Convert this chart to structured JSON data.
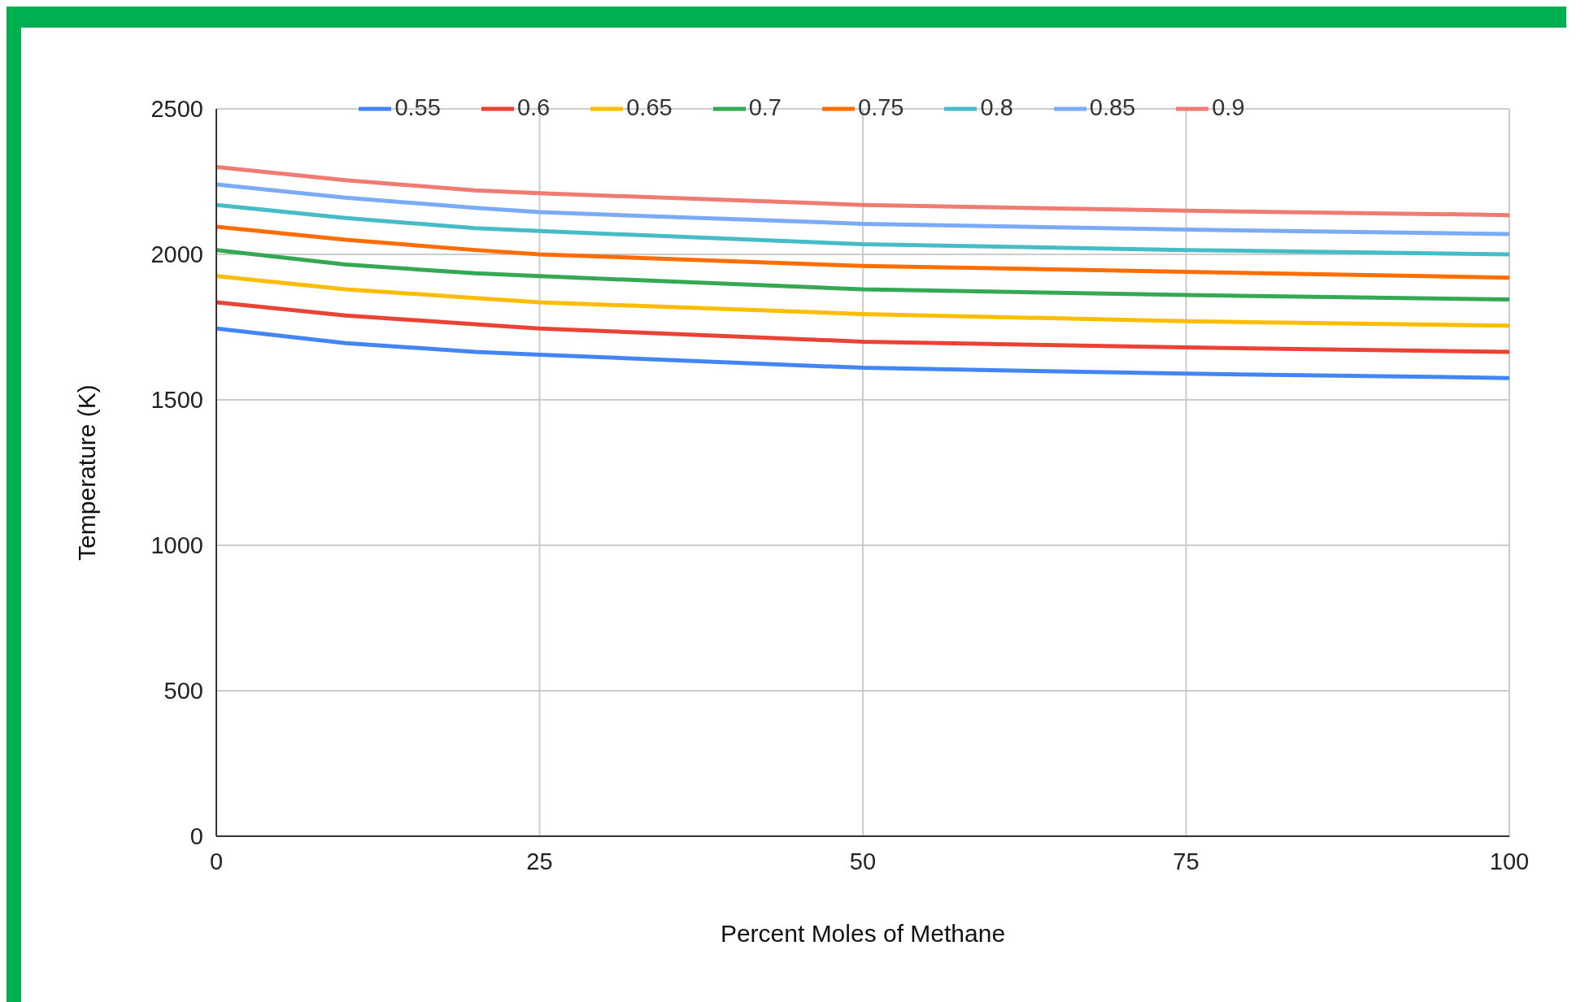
{
  "chart_data": {
    "type": "line",
    "xlabel": "Percent Moles of Methane",
    "ylabel": "Temperature (K)",
    "x": [
      0,
      10,
      20,
      25,
      50,
      75,
      100
    ],
    "series": [
      {
        "name": "0.55",
        "color": "#4285f4",
        "values": [
          1745,
          1695,
          1665,
          1655,
          1610,
          1590,
          1575
        ]
      },
      {
        "name": "0.6",
        "color": "#ea4335",
        "values": [
          1835,
          1790,
          1760,
          1745,
          1700,
          1680,
          1665
        ]
      },
      {
        "name": "0.65",
        "color": "#fbbc04",
        "values": [
          1925,
          1880,
          1850,
          1835,
          1795,
          1770,
          1755
        ]
      },
      {
        "name": "0.7",
        "color": "#34a853",
        "values": [
          2015,
          1965,
          1935,
          1925,
          1880,
          1860,
          1845
        ]
      },
      {
        "name": "0.75",
        "color": "#ff6d01",
        "values": [
          2095,
          2050,
          2015,
          2000,
          1960,
          1940,
          1920
        ]
      },
      {
        "name": "0.8",
        "color": "#46bdc6",
        "values": [
          2170,
          2125,
          2090,
          2080,
          2035,
          2015,
          2000
        ]
      },
      {
        "name": "0.85",
        "color": "#7baaf7",
        "values": [
          2240,
          2195,
          2160,
          2145,
          2105,
          2085,
          2070
        ]
      },
      {
        "name": "0.9",
        "color": "#f07b72",
        "values": [
          2300,
          2255,
          2220,
          2210,
          2170,
          2150,
          2135
        ]
      }
    ],
    "xlim": [
      0,
      100
    ],
    "xticks": [
      0,
      25,
      50,
      75,
      100
    ],
    "ylim": [
      0,
      2500
    ],
    "yticks": [
      0,
      500,
      1000,
      1500,
      2000,
      2500
    ],
    "grid": true,
    "legend": "top",
    "marker": "none",
    "line_style": "solid"
  }
}
